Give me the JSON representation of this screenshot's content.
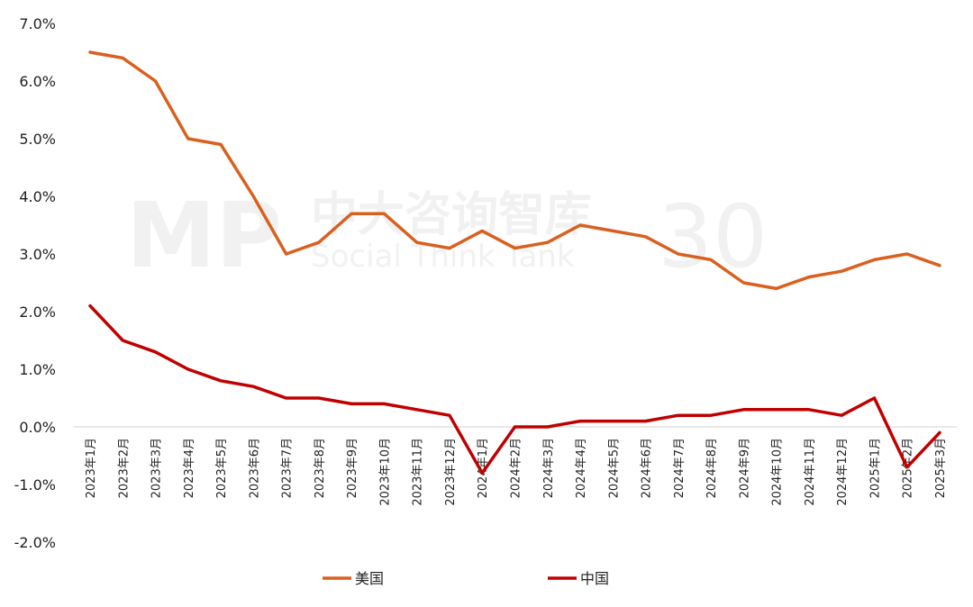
{
  "chart_data": {
    "type": "line",
    "categories": [
      "2023年1月",
      "2023年2月",
      "2023年3月",
      "2023年4月",
      "2023年5月",
      "2023年6月",
      "2023年7月",
      "2023年8月",
      "2023年9月",
      "2023年10月",
      "2023年11月",
      "2023年12月",
      "2024年1月",
      "2024年2月",
      "2024年3月",
      "2024年4月",
      "2024年5月",
      "2024年6月",
      "2024年7月",
      "2024年8月",
      "2024年9月",
      "2024年10月",
      "2024年11月",
      "2024年12月",
      "2025年1月",
      "2025年2月",
      "2025年3月"
    ],
    "series": [
      {
        "name": "美国",
        "color": "#d9601f",
        "values": [
          6.5,
          6.4,
          6.0,
          5.0,
          4.9,
          4.0,
          3.0,
          3.2,
          3.7,
          3.7,
          3.2,
          3.1,
          3.4,
          3.1,
          3.2,
          3.5,
          3.4,
          3.3,
          3.0,
          2.9,
          2.5,
          2.4,
          2.6,
          2.7,
          2.9,
          3.0,
          2.8
        ]
      },
      {
        "name": "中国",
        "color": "#c00000",
        "values": [
          2.1,
          1.5,
          1.3,
          1.0,
          0.8,
          0.7,
          0.5,
          0.5,
          0.4,
          0.4,
          0.3,
          0.2,
          -0.8,
          0.0,
          0.0,
          0.1,
          0.1,
          0.1,
          0.2,
          0.2,
          0.3,
          0.3,
          0.3,
          0.2,
          0.5,
          -0.7,
          -0.1
        ]
      }
    ],
    "yticks": [
      "7.0%",
      "6.0%",
      "5.0%",
      "4.0%",
      "3.0%",
      "2.0%",
      "1.0%",
      "0.0%",
      "-1.0%",
      "-2.0%"
    ],
    "ylim": [
      -2.0,
      7.0
    ],
    "grid": false,
    "legend_position": "bottom"
  },
  "watermark": {
    "title": "中大咨询智库",
    "subtitle": "Social Think Tank",
    "logo": "MP",
    "badge": "30"
  }
}
